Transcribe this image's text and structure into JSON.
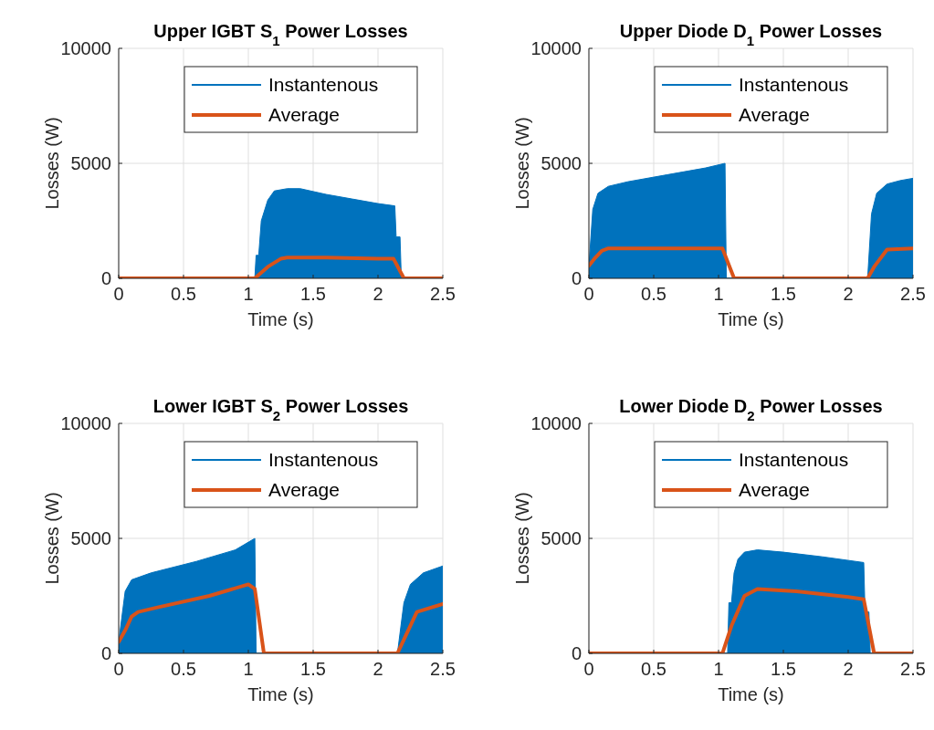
{
  "chart_data": [
    {
      "type": "line",
      "title": "Upper IGBT S$_{1}$ Power Losses",
      "xlabel": "Time (s)",
      "ylabel": "Losses (W)",
      "xlim": [
        0,
        2.5
      ],
      "xticks": [
        0,
        0.5,
        1,
        1.5,
        2,
        2.5
      ],
      "ylim": [
        0,
        10000
      ],
      "yticks": [
        0,
        5000,
        10000
      ],
      "grid": true,
      "legend": "top right",
      "series": [
        {
          "name": "Instantenous",
          "type": "area",
          "color": "#0072bd",
          "x": [
            0,
            1.05,
            1.06,
            1.08,
            1.1,
            1.15,
            1.2,
            1.3,
            1.4,
            1.6,
            1.8,
            2.0,
            2.13,
            2.14,
            2.17,
            2.18,
            2.5
          ],
          "values": [
            0,
            0,
            1000,
            1000,
            2500,
            3400,
            3800,
            3900,
            3900,
            3650,
            3450,
            3250,
            3150,
            1800,
            1800,
            0,
            0
          ]
        },
        {
          "name": "Average",
          "color": "#d95319",
          "x": [
            0,
            1.05,
            1.15,
            1.25,
            1.3,
            1.6,
            2.0,
            2.12,
            2.2,
            2.5
          ],
          "values": [
            0,
            0,
            500,
            850,
            900,
            900,
            850,
            850,
            0,
            0
          ]
        }
      ]
    },
    {
      "type": "line",
      "title": "Upper Diode D$_{1}$ Power Losses",
      "xlabel": "Time (s)",
      "ylabel": "Losses (W)",
      "xlim": [
        0,
        2.5
      ],
      "xticks": [
        0,
        0.5,
        1,
        1.5,
        2,
        2.5
      ],
      "ylim": [
        0,
        10000
      ],
      "yticks": [
        0,
        5000,
        10000
      ],
      "grid": true,
      "legend": "top right",
      "series": [
        {
          "name": "Instantenous",
          "type": "area",
          "color": "#0072bd",
          "x": [
            0,
            0.03,
            0.07,
            0.15,
            0.3,
            0.6,
            0.9,
            1.05,
            1.06,
            2.15,
            2.18,
            2.22,
            2.3,
            2.4,
            2.5
          ],
          "values": [
            500,
            3000,
            3700,
            4000,
            4200,
            4500,
            4800,
            5000,
            0,
            0,
            2800,
            3700,
            4100,
            4250,
            4350
          ]
        },
        {
          "name": "Average",
          "color": "#d95319",
          "x": [
            0,
            0.05,
            0.1,
            0.15,
            0.5,
            1.03,
            1.12,
            2.15,
            2.2,
            2.3,
            2.5
          ],
          "values": [
            550,
            900,
            1200,
            1300,
            1300,
            1300,
            0,
            0,
            500,
            1250,
            1300
          ]
        }
      ]
    },
    {
      "type": "line",
      "title": "Lower IGBT S$_{2}$ Power Losses",
      "xlabel": "Time (s)",
      "ylabel": "Losses (W)",
      "xlim": [
        0,
        2.5
      ],
      "xticks": [
        0,
        0.5,
        1,
        1.5,
        2,
        2.5
      ],
      "ylim": [
        0,
        10000
      ],
      "yticks": [
        0,
        5000,
        10000
      ],
      "grid": true,
      "legend": "top right",
      "series": [
        {
          "name": "Instantenous",
          "type": "area",
          "color": "#0072bd",
          "x": [
            0,
            0.05,
            0.1,
            0.25,
            0.6,
            0.9,
            1.05,
            1.06,
            2.15,
            2.2,
            2.25,
            2.35,
            2.5
          ],
          "values": [
            500,
            2700,
            3200,
            3500,
            4000,
            4500,
            5000,
            0,
            0,
            2200,
            3000,
            3500,
            3800
          ]
        },
        {
          "name": "Average",
          "color": "#d95319",
          "x": [
            0,
            0.05,
            0.1,
            0.15,
            0.3,
            0.7,
            1.0,
            1.05,
            1.12,
            2.15,
            2.2,
            2.3,
            2.5
          ],
          "values": [
            500,
            1000,
            1600,
            1800,
            2000,
            2500,
            3000,
            2800,
            0,
            0,
            600,
            1800,
            2150
          ]
        }
      ]
    },
    {
      "type": "line",
      "title": "Lower Diode D$_{2}$ Power Losses",
      "xlabel": "Time (s)",
      "ylabel": "Losses (W)",
      "xlim": [
        0,
        2.5
      ],
      "xticks": [
        0,
        0.5,
        1,
        1.5,
        2,
        2.5
      ],
      "ylim": [
        0,
        10000
      ],
      "yticks": [
        0,
        5000,
        10000
      ],
      "grid": true,
      "legend": "top right",
      "series": [
        {
          "name": "Instantenous",
          "type": "area",
          "color": "#0072bd",
          "x": [
            0,
            1.07,
            1.08,
            1.1,
            1.12,
            1.15,
            1.2,
            1.3,
            1.5,
            1.8,
            2.12,
            2.13,
            2.16,
            2.17,
            2.5
          ],
          "values": [
            0,
            0,
            2200,
            2200,
            3500,
            4100,
            4400,
            4500,
            4400,
            4200,
            3950,
            1800,
            1800,
            0,
            0
          ]
        },
        {
          "name": "Average",
          "color": "#d95319",
          "x": [
            0,
            1.03,
            1.1,
            1.2,
            1.3,
            1.6,
            2.0,
            2.12,
            2.2,
            2.5
          ],
          "values": [
            0,
            0,
            1200,
            2500,
            2800,
            2700,
            2450,
            2350,
            0,
            0
          ]
        }
      ]
    }
  ]
}
